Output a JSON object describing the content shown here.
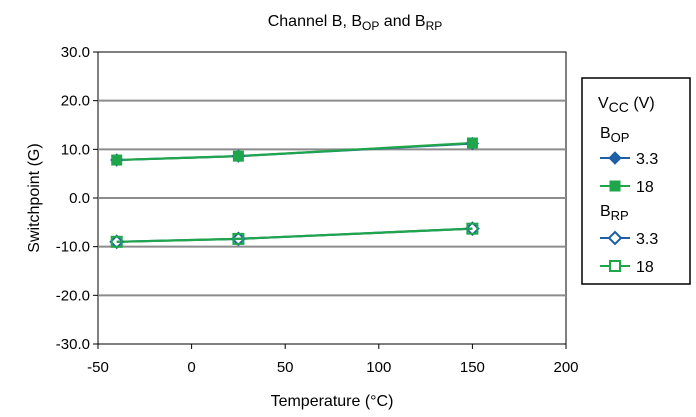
{
  "chart_data": {
    "type": "line",
    "title": {
      "main": "Channel B, B",
      "sub1": "OP",
      "mid": " and B",
      "sub2": "RP"
    },
    "xlabel": "Temperature (°C)",
    "ylabel": "Switchpoint (G)",
    "xlim": [
      -50,
      200
    ],
    "ylim": [
      -30,
      30
    ],
    "xticks": [
      -50,
      0,
      50,
      100,
      150,
      200
    ],
    "x_tick_labels": [
      "-50",
      "0",
      "50",
      "100",
      "150",
      "200"
    ],
    "yticks": [
      -30,
      -20,
      -10,
      0,
      10,
      20,
      30
    ],
    "y_tick_labels": [
      "-30.0",
      "-20.0",
      "-10.0",
      "0.0",
      "10.0",
      "20.0",
      "30.0"
    ],
    "grid": "horizontal",
    "legend_position": "right",
    "legend": {
      "title_main": "V",
      "title_sub": "CC",
      "title_unit": " (V)",
      "groups": [
        {
          "main": "B",
          "sub": "OP",
          "entries": [
            "3.3",
            "18"
          ]
        },
        {
          "main": "B",
          "sub": "RP",
          "entries": [
            "3.3",
            "18"
          ]
        }
      ]
    },
    "series": [
      {
        "group": "BOP",
        "name": "3.3",
        "color": "#1f5fa6",
        "marker": "diamond-filled",
        "x": [
          -40,
          25,
          150
        ],
        "y": [
          7.8,
          8.6,
          11.2
        ]
      },
      {
        "group": "BOP",
        "name": "18",
        "color": "#1fa64a",
        "marker": "square-filled",
        "x": [
          -40,
          25,
          150
        ],
        "y": [
          7.8,
          8.6,
          11.3
        ]
      },
      {
        "group": "BRP",
        "name": "3.3",
        "color": "#1f5fa6",
        "marker": "diamond-open",
        "x": [
          -40,
          25,
          150
        ],
        "y": [
          -9.0,
          -8.4,
          -6.3
        ]
      },
      {
        "group": "BRP",
        "name": "18",
        "color": "#1fa64a",
        "marker": "square-open",
        "x": [
          -40,
          25,
          150
        ],
        "y": [
          -9.0,
          -8.4,
          -6.3
        ]
      }
    ]
  }
}
